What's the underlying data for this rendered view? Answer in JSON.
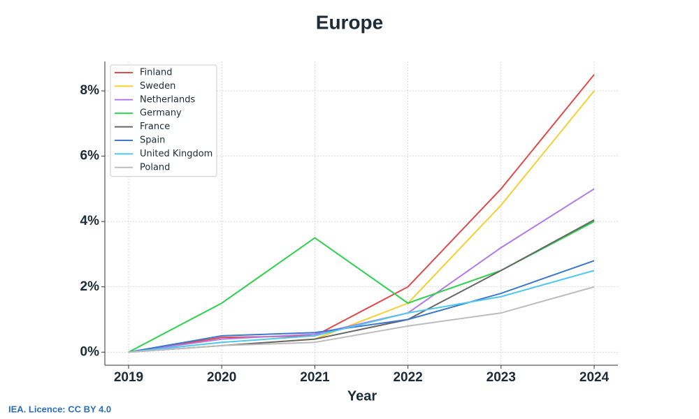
{
  "chart_data": {
    "type": "line",
    "title": "Europe",
    "x_label": "Year",
    "x": [
      2019,
      2020,
      2021,
      2022,
      2023,
      2024
    ],
    "xlim": [
      2018.745,
      2024.255
    ],
    "xticks": [
      2019,
      2020,
      2021,
      2022,
      2023,
      2024
    ],
    "ylim": [
      -0.4,
      8.9
    ],
    "yticks": [
      {
        "value": 0,
        "label": "0%"
      },
      {
        "value": 2,
        "label": "2%"
      },
      {
        "value": 4,
        "label": "4%"
      },
      {
        "value": 6,
        "label": "6%"
      },
      {
        "value": 8,
        "label": "8%"
      }
    ],
    "grid": true,
    "legend": "upper left",
    "series": [
      {
        "name": "Finland",
        "color": "#e04a4a",
        "values": [
          0,
          0.45,
          0.5,
          2.0,
          5.0,
          8.5
        ]
      },
      {
        "name": "Sweden",
        "color": "#f5d033",
        "values": [
          0,
          0.2,
          0.4,
          1.5,
          4.5,
          8.0
        ]
      },
      {
        "name": "Netherlands",
        "color": "#b07ae8",
        "values": [
          0,
          0.4,
          0.55,
          1.2,
          3.2,
          5.0
        ]
      },
      {
        "name": "Germany",
        "color": "#2dd14e",
        "values": [
          0,
          1.5,
          3.5,
          1.5,
          2.5,
          4.0
        ]
      },
      {
        "name": "France",
        "color": "#666666",
        "values": [
          0,
          0.2,
          0.4,
          1.0,
          2.5,
          4.05
        ]
      },
      {
        "name": "Spain",
        "color": "#3d78cc",
        "values": [
          0,
          0.5,
          0.6,
          1.0,
          1.8,
          2.8
        ]
      },
      {
        "name": "United Kingdom",
        "color": "#4fc8f0",
        "values": [
          0,
          0.3,
          0.5,
          1.2,
          1.7,
          2.5
        ]
      },
      {
        "name": "Poland",
        "color": "#bdbdbd",
        "values": [
          0,
          0.2,
          0.3,
          0.8,
          1.2,
          2.0
        ]
      }
    ]
  },
  "footer": "IEA. Licence: CC BY 4.0"
}
